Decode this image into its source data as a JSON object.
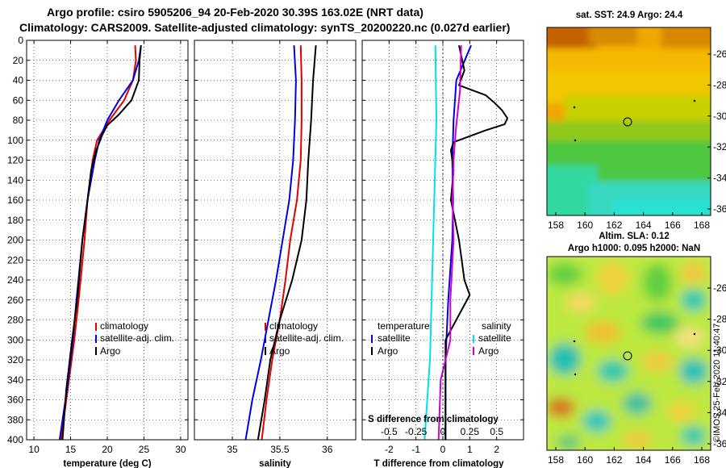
{
  "header": {
    "title_line1": "Argo profile: csiro 5905206_94 20-Feb-2020 30.39S 163.02E (NRT data)",
    "title_line2": "Climatology: CARS2009. Satellite-adjusted climatology: synTS_20200220.nc (0.027d earlier)"
  },
  "colors": {
    "climatology": "#e00000",
    "satellite": "#0000e0",
    "argo": "#000000",
    "sat_salinity": "#00e0f0",
    "argo_salinity": "#d000d0"
  },
  "depth_ticks": [
    "0",
    "20",
    "40",
    "60",
    "80",
    "100",
    "120",
    "140",
    "160",
    "180",
    "200",
    "220",
    "240",
    "260",
    "280",
    "300",
    "320",
    "340",
    "360",
    "380",
    "400"
  ],
  "legend": {
    "climatology": "climatology",
    "satellite_clim": "satellite-adj. clim.",
    "argo": "Argo",
    "temperature": "temperature",
    "salinity": "salinity",
    "satellite": "satellite"
  },
  "chart_data": [
    {
      "type": "line",
      "id": "temperature",
      "xlabel": "temperature (deg C)",
      "xlim": [
        9,
        31
      ],
      "xticks": [
        10,
        15,
        20,
        25,
        30
      ],
      "xtick_labels": [
        "10",
        "15",
        "20",
        "25",
        "30"
      ],
      "ylim": [
        400,
        0
      ],
      "series": [
        {
          "name": "climatology",
          "color": "#e00000",
          "depth": [
            5,
            20,
            40,
            60,
            80,
            100,
            120,
            160,
            200,
            260,
            300,
            350,
            400
          ],
          "values": [
            23.8,
            23.9,
            23.5,
            22.3,
            20.3,
            18.6,
            18.0,
            17.3,
            16.9,
            16.1,
            15.5,
            14.6,
            13.7
          ]
        },
        {
          "name": "satellite-adj. clim.",
          "color": "#0000e0",
          "depth": [
            5,
            20,
            40,
            60,
            80,
            100,
            120,
            160,
            200,
            260,
            300,
            350,
            400
          ],
          "values": [
            24.6,
            24.3,
            23.5,
            21.6,
            20.0,
            18.9,
            18.3,
            17.3,
            16.6,
            15.8,
            15.3,
            14.5,
            13.5
          ]
        },
        {
          "name": "Argo",
          "color": "#000000",
          "depth": [
            5,
            20,
            40,
            60,
            75,
            85,
            95,
            110,
            130,
            160,
            200,
            260,
            300,
            350,
            400
          ],
          "values": [
            24.6,
            24.4,
            24.3,
            23.3,
            21.5,
            20.0,
            19.3,
            18.5,
            17.8,
            17.3,
            16.6,
            15.9,
            15.2,
            14.4,
            13.9
          ]
        }
      ]
    },
    {
      "type": "line",
      "id": "salinity",
      "xlabel": "salinity",
      "xlim": [
        34.6,
        36.3
      ],
      "xticks": [
        35,
        35.5,
        36
      ],
      "xtick_labels": [
        "35",
        "35.5",
        "36"
      ],
      "ylim": [
        400,
        0
      ],
      "series": [
        {
          "name": "climatology",
          "color": "#e00000",
          "depth": [
            5,
            40,
            80,
            120,
            160,
            200,
            240,
            280,
            320,
            360,
            400
          ],
          "values": [
            35.72,
            35.73,
            35.73,
            35.72,
            35.68,
            35.61,
            35.56,
            35.5,
            35.42,
            35.36,
            35.31
          ]
        },
        {
          "name": "satellite-adj. clim.",
          "color": "#0000e0",
          "depth": [
            5,
            40,
            80,
            120,
            160,
            200,
            240,
            280,
            320,
            360,
            400
          ],
          "values": [
            35.65,
            35.67,
            35.66,
            35.64,
            35.6,
            35.53,
            35.46,
            35.38,
            35.3,
            35.21,
            35.14
          ]
        },
        {
          "name": "Argo",
          "color": "#000000",
          "depth": [
            5,
            40,
            80,
            120,
            160,
            200,
            240,
            280,
            320,
            360,
            400
          ],
          "values": [
            35.88,
            35.85,
            35.83,
            35.8,
            35.78,
            35.73,
            35.63,
            35.5,
            35.4,
            35.34,
            35.27
          ]
        }
      ]
    },
    {
      "type": "line",
      "id": "difference",
      "xlabel": "T difference from climatology",
      "x2label": "S difference from climatology",
      "xlim": [
        -3,
        3
      ],
      "xticks": [
        -2,
        -1,
        0,
        1,
        2
      ],
      "xtick_labels": [
        "-2",
        "-1",
        "0",
        "1",
        "2"
      ],
      "x2ticks": [
        -0.5,
        -0.25,
        0,
        0.25,
        0.5
      ],
      "x2tick_labels": [
        "-0.5",
        "-0.25",
        "0",
        "0.25",
        "0.5"
      ],
      "ylim": [
        400,
        0
      ],
      "series": [
        {
          "name": "satellite T",
          "color": "#0000e0",
          "depth": [
            5,
            40,
            80,
            120,
            160,
            200,
            260,
            320,
            400
          ],
          "values": [
            1.05,
            0.5,
            0.4,
            0.35,
            0.38,
            0.35,
            0.2,
            0.1,
            0.1
          ]
        },
        {
          "name": "Argo T",
          "color": "#000000",
          "depth": [
            5,
            30,
            45,
            55,
            62,
            70,
            78,
            84,
            90,
            96,
            102,
            110,
            130,
            160,
            200,
            240,
            255,
            270,
            285,
            300,
            330,
            360,
            400
          ],
          "values": [
            0.6,
            0.8,
            0.6,
            1.6,
            1.9,
            2.2,
            2.4,
            2.3,
            1.6,
            1.0,
            0.4,
            0.3,
            0.4,
            0.3,
            0.6,
            0.8,
            1.0,
            0.7,
            0.4,
            0.1,
            0.1,
            0.1,
            0.1
          ]
        },
        {
          "name": "satellite S",
          "color": "#00e0f0",
          "depth": [
            5,
            80,
            160,
            240,
            320,
            400
          ],
          "values": [
            -0.07,
            -0.06,
            -0.08,
            -0.1,
            -0.12,
            -0.17
          ]
        },
        {
          "name": "Argo S",
          "color": "#d000d0",
          "depth": [
            5,
            50,
            90,
            120,
            160,
            200,
            260,
            300,
            340,
            400
          ],
          "values": [
            0.17,
            0.16,
            0.12,
            0.1,
            0.09,
            0.1,
            0.07,
            0.07,
            -0.02,
            -0.04
          ]
        }
      ]
    }
  ],
  "maps": {
    "sst": {
      "title": "sat. SST: 24.9 Argo: 24.4",
      "xticks": [
        "158",
        "160",
        "162",
        "164",
        "166",
        "168"
      ],
      "yticks": [
        "-26",
        "-28",
        "-30",
        "-32",
        "-34",
        "-36"
      ]
    },
    "sla": {
      "title1": "Altim. SLA: 0.12",
      "title2": "Argo h1000: 0.095 h2000: NaN",
      "xticks": [
        "158",
        "160",
        "162",
        "164",
        "166",
        "168"
      ],
      "yticks": [
        "-26",
        "-28",
        "-30",
        "-32",
        "-34",
        "-36"
      ]
    }
  },
  "footer": {
    "credit": "©IMOS 25-Feb-2020 11:40:47"
  }
}
